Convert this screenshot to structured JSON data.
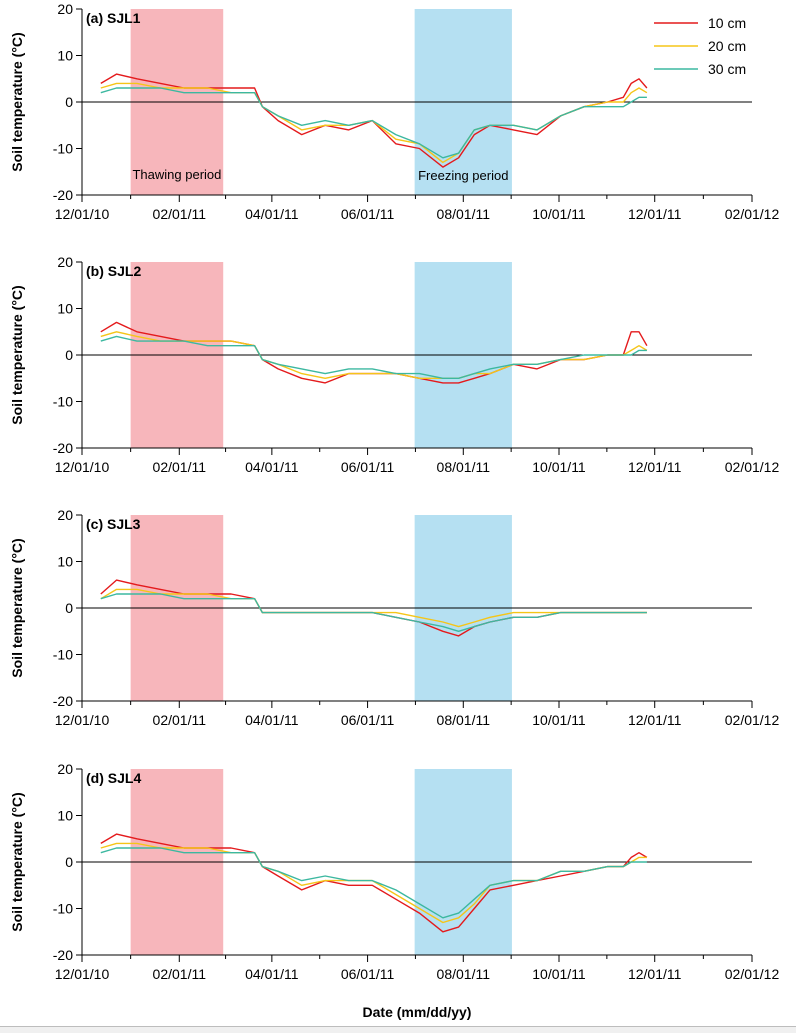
{
  "figure": {
    "xlabel": "Date (mm/dd/yy)",
    "ylabel": "Soil temperature (°C)",
    "legend": [
      {
        "name": "10 cm",
        "color": "#e41a1c"
      },
      {
        "name": "20 cm",
        "color": "#f5c518"
      },
      {
        "name": "30 cm",
        "color": "#3cb8a0"
      }
    ],
    "periods": [
      {
        "name": "Thawing period",
        "start": "01/01/11",
        "end": "03/01/11",
        "color": "#f7b6bb"
      },
      {
        "name": "Freezing period",
        "start": "07/01/11",
        "end": "09/01/11",
        "color": "#b5e0f2"
      }
    ]
  },
  "chart_data": [
    {
      "type": "line",
      "title": "(a) SJL1",
      "xlabel": "Date (mm/dd/yy)",
      "ylabel": "Soil temperature (°C)",
      "ylim": [
        -20,
        20
      ],
      "xlim": [
        "12/01/10",
        "02/01/12"
      ],
      "yticks": [
        -20,
        -10,
        0,
        10,
        20
      ],
      "xticks": [
        "12/01/10",
        "02/01/11",
        "04/01/11",
        "06/01/11",
        "08/01/11",
        "10/01/11",
        "12/01/11",
        "02/01/12"
      ],
      "period_labels": [
        "Thawing period",
        "Freezing period"
      ],
      "x_day_offsets": [
        12,
        22,
        35,
        50,
        65,
        80,
        95,
        110,
        115,
        125,
        140,
        155,
        170,
        185,
        200,
        215,
        230,
        240,
        250,
        260,
        275,
        290,
        305,
        320,
        335,
        345,
        350,
        355,
        360
      ],
      "series": [
        {
          "name": "10 cm",
          "values": [
            4,
            6,
            5,
            4,
            3,
            3,
            3,
            3,
            -1,
            -4,
            -7,
            -5,
            -6,
            -4,
            -9,
            -10,
            -14,
            -12,
            -7,
            -5,
            -6,
            -7,
            -3,
            -1,
            0,
            1,
            4,
            5,
            3
          ]
        },
        {
          "name": "20 cm",
          "values": [
            3,
            4,
            4,
            3,
            3,
            3,
            2,
            2,
            -1,
            -3,
            -6,
            -5,
            -5,
            -4,
            -8,
            -9,
            -13,
            -11,
            -6,
            -5,
            -5,
            -6,
            -3,
            -1,
            0,
            0,
            2,
            3,
            2
          ]
        },
        {
          "name": "30 cm",
          "values": [
            2,
            3,
            3,
            3,
            2,
            2,
            2,
            2,
            -1,
            -3,
            -5,
            -4,
            -5,
            -4,
            -7,
            -9,
            -12,
            -11,
            -6,
            -5,
            -5,
            -6,
            -3,
            -1,
            -1,
            -1,
            0,
            1,
            1
          ]
        }
      ]
    },
    {
      "type": "line",
      "title": "(b) SJL2",
      "xlabel": "Date (mm/dd/yy)",
      "ylabel": "Soil temperature (°C)",
      "ylim": [
        -20,
        20
      ],
      "xlim": [
        "12/01/10",
        "02/01/12"
      ],
      "yticks": [
        -20,
        -10,
        0,
        10,
        20
      ],
      "xticks": [
        "12/01/10",
        "02/01/11",
        "04/01/11",
        "06/01/11",
        "08/01/11",
        "10/01/11",
        "12/01/11",
        "02/01/12"
      ],
      "x_day_offsets": [
        12,
        22,
        35,
        50,
        65,
        80,
        95,
        110,
        115,
        125,
        140,
        155,
        170,
        185,
        200,
        215,
        230,
        240,
        250,
        260,
        275,
        290,
        305,
        320,
        335,
        345,
        350,
        355,
        360
      ],
      "series": [
        {
          "name": "10 cm",
          "values": [
            5,
            7,
            5,
            4,
            3,
            3,
            3,
            2,
            -1,
            -3,
            -5,
            -6,
            -4,
            -4,
            -4,
            -5,
            -6,
            -6,
            -5,
            -4,
            -2,
            -3,
            -1,
            -1,
            0,
            0,
            5,
            5,
            2
          ]
        },
        {
          "name": "20 cm",
          "values": [
            4,
            5,
            4,
            3,
            3,
            3,
            3,
            2,
            -1,
            -2,
            -4,
            -5,
            -4,
            -4,
            -4,
            -5,
            -5,
            -5,
            -4,
            -4,
            -2,
            -2,
            -1,
            -1,
            0,
            0,
            1,
            2,
            1
          ]
        },
        {
          "name": "30 cm",
          "values": [
            3,
            4,
            3,
            3,
            3,
            2,
            2,
            2,
            -1,
            -2,
            -3,
            -4,
            -3,
            -3,
            -4,
            -4,
            -5,
            -5,
            -4,
            -3,
            -2,
            -2,
            -1,
            0,
            0,
            0,
            0,
            1,
            1
          ]
        }
      ]
    },
    {
      "type": "line",
      "title": "(c) SJL3",
      "xlabel": "Date (mm/dd/yy)",
      "ylabel": "Soil temperature (°C)",
      "ylim": [
        -20,
        20
      ],
      "xlim": [
        "12/01/10",
        "02/01/12"
      ],
      "yticks": [
        -20,
        -10,
        0,
        10,
        20
      ],
      "xticks": [
        "12/01/10",
        "02/01/11",
        "04/01/11",
        "06/01/11",
        "08/01/11",
        "10/01/11",
        "12/01/11",
        "02/01/12"
      ],
      "x_day_offsets": [
        12,
        22,
        35,
        50,
        65,
        80,
        95,
        110,
        115,
        125,
        140,
        155,
        170,
        185,
        200,
        215,
        230,
        240,
        250,
        260,
        275,
        290,
        305,
        320,
        335,
        345,
        350,
        355,
        360
      ],
      "series": [
        {
          "name": "10 cm",
          "values": [
            3,
            6,
            5,
            4,
            3,
            3,
            3,
            2,
            -1,
            -1,
            -1,
            -1,
            -1,
            -1,
            -2,
            -3,
            -5,
            -6,
            -4,
            -3,
            -2,
            -2,
            -1,
            -1,
            -1,
            -1,
            -1,
            -1,
            -1
          ]
        },
        {
          "name": "20 cm",
          "values": [
            2,
            4,
            4,
            3,
            3,
            3,
            2,
            2,
            -1,
            -1,
            -1,
            -1,
            -1,
            -1,
            -1,
            -2,
            -3,
            -4,
            -3,
            -2,
            -1,
            -1,
            -1,
            -1,
            -1,
            -1,
            -1,
            -1,
            -1
          ]
        },
        {
          "name": "30 cm",
          "values": [
            2,
            3,
            3,
            3,
            2,
            2,
            2,
            2,
            -1,
            -1,
            -1,
            -1,
            -1,
            -1,
            -2,
            -3,
            -4,
            -5,
            -4,
            -3,
            -2,
            -2,
            -1,
            -1,
            -1,
            -1,
            -1,
            -1,
            -1
          ]
        }
      ]
    },
    {
      "type": "line",
      "title": "(d) SJL4",
      "xlabel": "Date (mm/dd/yy)",
      "ylabel": "Soil temperature (°C)",
      "ylim": [
        -20,
        20
      ],
      "xlim": [
        "12/01/10",
        "02/01/12"
      ],
      "yticks": [
        -20,
        -10,
        0,
        10,
        20
      ],
      "xticks": [
        "12/01/10",
        "02/01/11",
        "04/01/11",
        "06/01/11",
        "08/01/11",
        "10/01/11",
        "12/01/11",
        "02/01/12"
      ],
      "x_day_offsets": [
        12,
        22,
        35,
        50,
        65,
        80,
        95,
        110,
        115,
        125,
        140,
        155,
        170,
        185,
        200,
        215,
        230,
        240,
        250,
        260,
        275,
        290,
        305,
        320,
        335,
        345,
        350,
        355,
        360
      ],
      "series": [
        {
          "name": "10 cm",
          "values": [
            4,
            6,
            5,
            4,
            3,
            3,
            3,
            2,
            -1,
            -3,
            -6,
            -4,
            -5,
            -5,
            -8,
            -11,
            -15,
            -14,
            -10,
            -6,
            -5,
            -4,
            -3,
            -2,
            -1,
            -1,
            1,
            2,
            1
          ]
        },
        {
          "name": "20 cm",
          "values": [
            3,
            4,
            4,
            3,
            3,
            3,
            2,
            2,
            -1,
            -2,
            -5,
            -4,
            -4,
            -4,
            -7,
            -10,
            -13,
            -12,
            -9,
            -5,
            -4,
            -4,
            -2,
            -2,
            -1,
            -1,
            0,
            1,
            1
          ]
        },
        {
          "name": "30 cm",
          "values": [
            2,
            3,
            3,
            3,
            2,
            2,
            2,
            2,
            -1,
            -2,
            -4,
            -3,
            -4,
            -4,
            -6,
            -9,
            -12,
            -11,
            -8,
            -5,
            -4,
            -4,
            -2,
            -2,
            -1,
            -1,
            0,
            0,
            0
          ]
        }
      ]
    }
  ]
}
